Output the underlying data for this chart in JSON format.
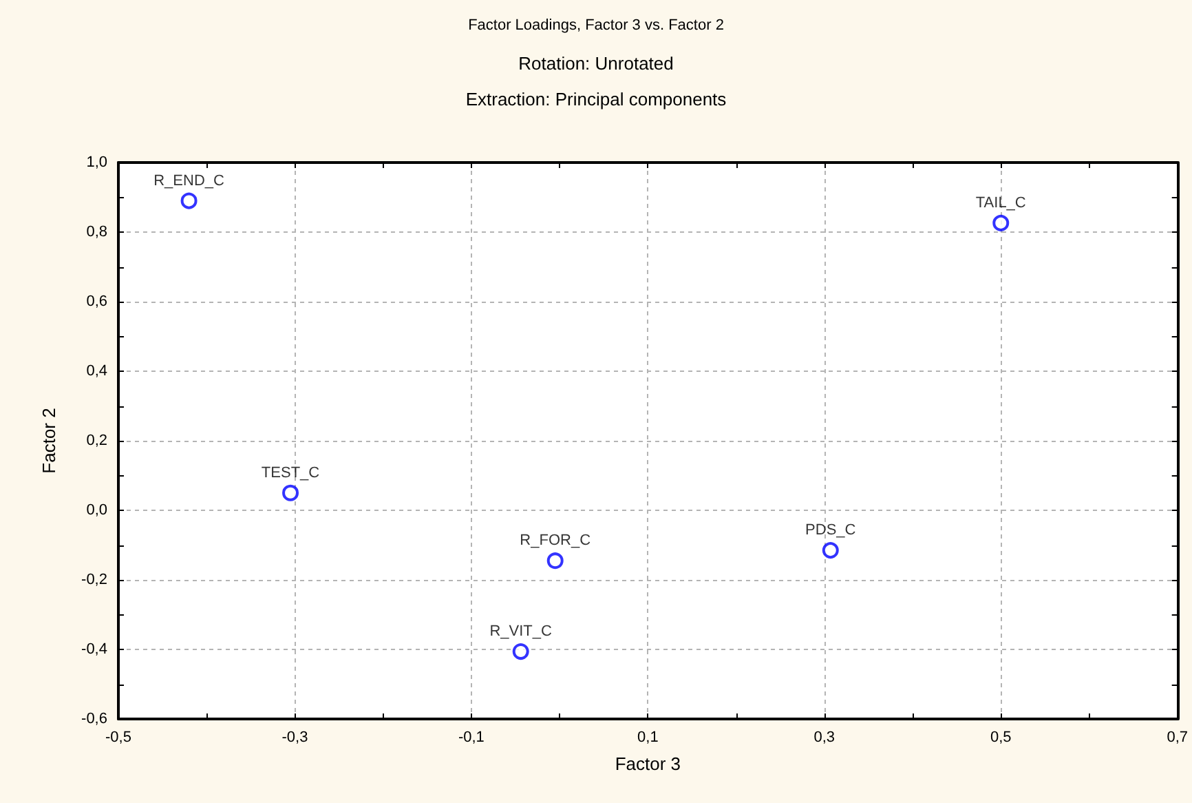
{
  "chart_data": {
    "type": "scatter",
    "title": "Factor Loadings, Factor 3 vs. Factor 2",
    "subtitle": "Rotation: Unrotated\nExtraction: Principal components",
    "xlabel": "Factor 3",
    "ylabel": "Factor 2",
    "x": [
      -0.42,
      0.5,
      -0.305,
      -0.005,
      0.307,
      -0.044
    ],
    "series": [
      {
        "color": "#0000ff",
        "values": [
          0.89,
          0.826,
          0.05,
          -0.145,
          -0.115,
          -0.406
        ]
      }
    ],
    "annotations": [
      {
        "text": "R_END_C",
        "x": -0.42,
        "y": 0.89
      },
      {
        "text": "TAIL_C",
        "x": 0.5,
        "y": 0.826
      },
      {
        "text": "TEST_C",
        "x": -0.305,
        "y": 0.05
      },
      {
        "text": "R_FOR_C",
        "x": -0.005,
        "y": -0.145
      },
      {
        "text": "PDS_C",
        "x": 0.307,
        "y": -0.115
      },
      {
        "text": "R_VIT_C",
        "x": -0.044,
        "y": -0.406
      }
    ],
    "xlim": [
      -0.5,
      0.7
    ],
    "xticks": [
      {
        "value": -0.5,
        "label": "-0,5"
      },
      {
        "value": -0.4,
        "label": null
      },
      {
        "value": -0.3,
        "label": "-0,3"
      },
      {
        "value": -0.2,
        "label": null
      },
      {
        "value": -0.1,
        "label": "-0,1"
      },
      {
        "value": 0,
        "label": null
      },
      {
        "value": 0.1,
        "label": "0,1"
      },
      {
        "value": 0.2,
        "label": null
      },
      {
        "value": 0.3,
        "label": "0,3"
      },
      {
        "value": 0.4,
        "label": null
      },
      {
        "value": 0.5,
        "label": "0,5"
      },
      {
        "value": 0.6,
        "label": null
      },
      {
        "value": 0.7,
        "label": "0,7"
      }
    ],
    "ylim": [
      -0.6,
      1.0
    ],
    "yticks": [
      {
        "value": -0.6,
        "label": "-0,6"
      },
      {
        "value": -0.5,
        "label": null
      },
      {
        "value": -0.4,
        "label": "-0,4"
      },
      {
        "value": -0.3,
        "label": null
      },
      {
        "value": -0.2,
        "label": "-0,2"
      },
      {
        "value": -0.1,
        "label": null
      },
      {
        "value": 0,
        "label": "0,0"
      },
      {
        "value": 0.1,
        "label": null
      },
      {
        "value": 0.2,
        "label": "0,2"
      },
      {
        "value": 0.3,
        "label": null
      },
      {
        "value": 0.4,
        "label": "0,4"
      },
      {
        "value": 0.5,
        "label": null
      },
      {
        "value": 0.6,
        "label": "0,6"
      },
      {
        "value": 0.7,
        "label": null
      },
      {
        "value": 0.8,
        "label": "0,8"
      },
      {
        "value": 0.9,
        "label": null
      },
      {
        "value": 1.0,
        "label": "1,0"
      }
    ],
    "grid": true,
    "marker": "circle"
  }
}
